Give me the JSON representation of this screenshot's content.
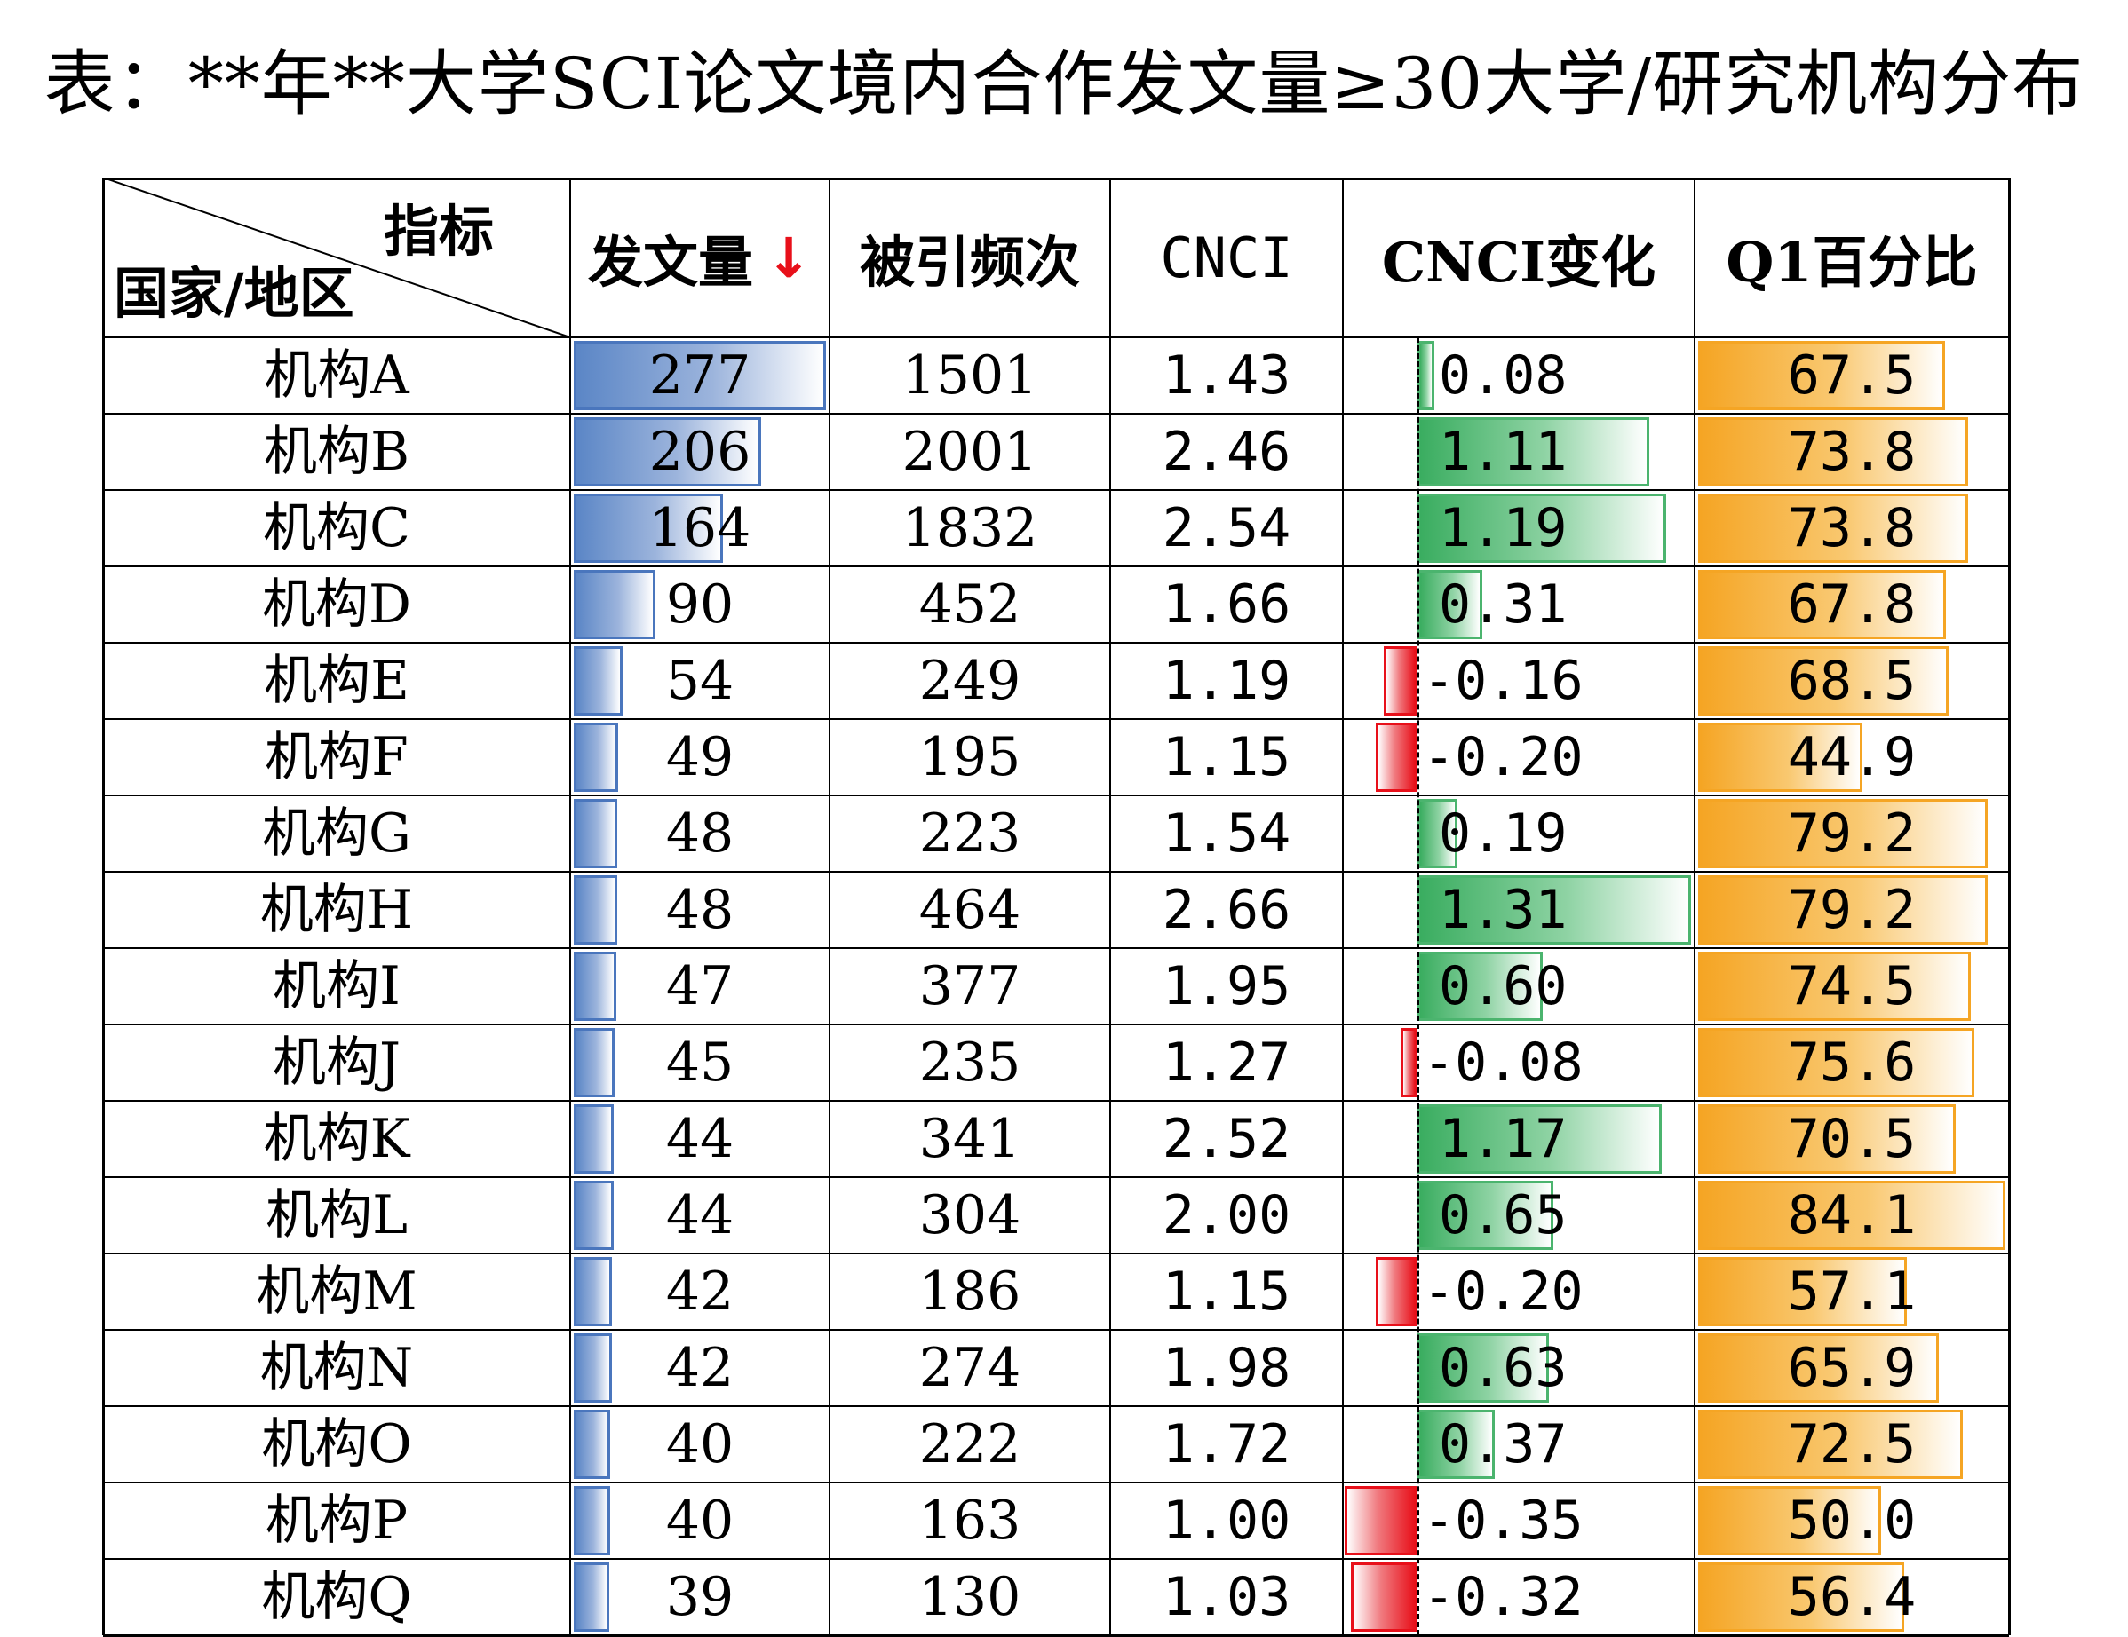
{
  "title": "表：**年**大学SCI论文境内合作发文量≥30大学/研究机构分布",
  "header": {
    "corner_top": "指标",
    "corner_bottom": "国家/地区",
    "columns": [
      "发文量",
      "被引频次",
      "CNCI",
      "CNCI变化",
      "Q1百分比"
    ],
    "sort_arrow": "↓"
  },
  "colors": {
    "blue_bar": "#5b86c6",
    "green_bar": "#3aad60",
    "red_bar": "#e8101a",
    "orange_bar": "#f5a524",
    "sort_arrow": "#e8101a"
  },
  "rows": [
    {
      "name": "机构A",
      "papers": "277",
      "citations": "1501",
      "cnci": "1.43",
      "cnci_change": "0.08",
      "q1": "67.5"
    },
    {
      "name": "机构B",
      "papers": "206",
      "citations": "2001",
      "cnci": "2.46",
      "cnci_change": "1.11",
      "q1": "73.8"
    },
    {
      "name": "机构C",
      "papers": "164",
      "citations": "1832",
      "cnci": "2.54",
      "cnci_change": "1.19",
      "q1": "73.8"
    },
    {
      "name": "机构D",
      "papers": "90",
      "citations": "452",
      "cnci": "1.66",
      "cnci_change": "0.31",
      "q1": "67.8"
    },
    {
      "name": "机构E",
      "papers": "54",
      "citations": "249",
      "cnci": "1.19",
      "cnci_change": "-0.16",
      "q1": "68.5"
    },
    {
      "name": "机构F",
      "papers": "49",
      "citations": "195",
      "cnci": "1.15",
      "cnci_change": "-0.20",
      "q1": "44.9"
    },
    {
      "name": "机构G",
      "papers": "48",
      "citations": "223",
      "cnci": "1.54",
      "cnci_change": "0.19",
      "q1": "79.2"
    },
    {
      "name": "机构H",
      "papers": "48",
      "citations": "464",
      "cnci": "2.66",
      "cnci_change": "1.31",
      "q1": "79.2"
    },
    {
      "name": "机构I",
      "papers": "47",
      "citations": "377",
      "cnci": "1.95",
      "cnci_change": "0.60",
      "q1": "74.5"
    },
    {
      "name": "机构J",
      "papers": "45",
      "citations": "235",
      "cnci": "1.27",
      "cnci_change": "-0.08",
      "q1": "75.6"
    },
    {
      "name": "机构K",
      "papers": "44",
      "citations": "341",
      "cnci": "2.52",
      "cnci_change": "1.17",
      "q1": "70.5"
    },
    {
      "name": "机构L",
      "papers": "44",
      "citations": "304",
      "cnci": "2.00",
      "cnci_change": "0.65",
      "q1": "84.1"
    },
    {
      "name": "机构M",
      "papers": "42",
      "citations": "186",
      "cnci": "1.15",
      "cnci_change": "-0.20",
      "q1": "57.1"
    },
    {
      "name": "机构N",
      "papers": "42",
      "citations": "274",
      "cnci": "1.98",
      "cnci_change": "0.63",
      "q1": "65.9"
    },
    {
      "name": "机构O",
      "papers": "40",
      "citations": "222",
      "cnci": "1.72",
      "cnci_change": "0.37",
      "q1": "72.5"
    },
    {
      "name": "机构P",
      "papers": "40",
      "citations": "163",
      "cnci": "1.00",
      "cnci_change": "-0.35",
      "q1": "50.0"
    },
    {
      "name": "机构Q",
      "papers": "39",
      "citations": "130",
      "cnci": "1.03",
      "cnci_change": "-0.32",
      "q1": "56.4"
    }
  ],
  "chart_data": {
    "type": "table",
    "title": "表：**年**大学SCI论文境内合作发文量≥30大学/研究机构分布",
    "columns": [
      "国家/地区",
      "发文量",
      "被引频次",
      "CNCI",
      "CNCI变化",
      "Q1百分比"
    ],
    "categories": [
      "机构A",
      "机构B",
      "机构C",
      "机构D",
      "机构E",
      "机构F",
      "机构G",
      "机构H",
      "机构I",
      "机构J",
      "机构K",
      "机构L",
      "机构M",
      "机构N",
      "机构O",
      "机构P",
      "机构Q"
    ],
    "series": [
      {
        "name": "发文量",
        "values": [
          277,
          206,
          164,
          90,
          54,
          49,
          48,
          48,
          47,
          45,
          44,
          44,
          42,
          42,
          40,
          40,
          39
        ]
      },
      {
        "name": "被引频次",
        "values": [
          1501,
          2001,
          1832,
          452,
          249,
          195,
          223,
          464,
          377,
          235,
          341,
          304,
          186,
          274,
          222,
          163,
          130
        ]
      },
      {
        "name": "CNCI",
        "values": [
          1.43,
          2.46,
          2.54,
          1.66,
          1.19,
          1.15,
          1.54,
          2.66,
          1.95,
          1.27,
          2.52,
          2.0,
          1.15,
          1.98,
          1.72,
          1.0,
          1.03
        ]
      },
      {
        "name": "CNCI变化",
        "values": [
          0.08,
          1.11,
          1.19,
          0.31,
          -0.16,
          -0.2,
          0.19,
          1.31,
          0.6,
          -0.08,
          1.17,
          0.65,
          -0.2,
          0.63,
          0.37,
          -0.35,
          -0.32
        ]
      },
      {
        "name": "Q1百分比",
        "values": [
          67.5,
          73.8,
          73.8,
          67.8,
          68.5,
          44.9,
          79.2,
          79.2,
          74.5,
          75.6,
          70.5,
          84.1,
          57.1,
          65.9,
          72.5,
          50.0,
          56.4
        ]
      }
    ]
  }
}
